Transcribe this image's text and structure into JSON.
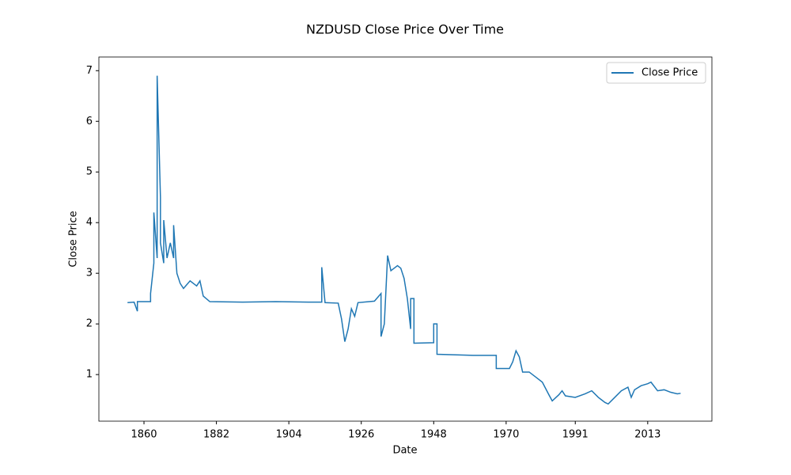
{
  "chart_data": {
    "type": "line",
    "title": "NZDUSD Close Price Over Time",
    "xlabel": "Date",
    "ylabel": "Close Price",
    "x": [
      1855,
      1857,
      1858,
      1858,
      1862,
      1862,
      1863,
      1863,
      1864,
      1864,
      1865,
      1865,
      1866,
      1866,
      1867,
      1868,
      1869,
      1869,
      1870,
      1871,
      1872,
      1874,
      1876,
      1877,
      1878,
      1880,
      1890,
      1900,
      1910,
      1914,
      1914,
      1915,
      1919,
      1920,
      1921,
      1922,
      1923,
      1924,
      1925,
      1930,
      1932,
      1932,
      1933,
      1934,
      1935,
      1937,
      1938,
      1939,
      1940,
      1941,
      1941,
      1942,
      1942,
      1948,
      1948,
      1949,
      1949,
      1960,
      1967,
      1967,
      1971,
      1972,
      1973,
      1974,
      1975,
      1977,
      1979,
      1981,
      1983,
      1984,
      1986,
      1987,
      1988,
      1991,
      1994,
      1996,
      1998,
      2000,
      2001,
      2003,
      2005,
      2007,
      2008,
      2009,
      2011,
      2013,
      2014,
      2016,
      2018,
      2020,
      2022,
      2023
    ],
    "series": [
      {
        "name": "Close Price",
        "color": "#1f77b4",
        "values": [
          2.42,
          2.43,
          2.25,
          2.44,
          2.44,
          2.6,
          3.2,
          4.2,
          3.3,
          6.9,
          4.5,
          3.6,
          3.2,
          4.05,
          3.3,
          3.6,
          3.3,
          3.95,
          3.0,
          2.8,
          2.7,
          2.85,
          2.75,
          2.85,
          2.55,
          2.44,
          2.43,
          2.44,
          2.43,
          2.43,
          3.12,
          2.42,
          2.41,
          2.1,
          1.65,
          1.9,
          2.3,
          2.15,
          2.42,
          2.45,
          2.6,
          1.75,
          2.0,
          3.35,
          3.05,
          3.15,
          3.1,
          2.9,
          2.5,
          1.9,
          2.5,
          2.5,
          1.62,
          1.63,
          2.0,
          2.0,
          1.4,
          1.38,
          1.38,
          1.12,
          1.12,
          1.25,
          1.47,
          1.35,
          1.05,
          1.05,
          0.95,
          0.85,
          0.6,
          0.48,
          0.6,
          0.68,
          0.58,
          0.55,
          0.62,
          0.68,
          0.55,
          0.45,
          0.42,
          0.55,
          0.68,
          0.75,
          0.55,
          0.7,
          0.78,
          0.82,
          0.85,
          0.68,
          0.7,
          0.65,
          0.62,
          0.63
        ]
      }
    ],
    "xlim": [
      1846.3,
      2032.5
    ],
    "xticks": [
      1860,
      1882,
      1904,
      1926,
      1948,
      1970,
      1991,
      2013
    ],
    "ylim": [
      0.08,
      7.27
    ],
    "yticks": [
      1,
      2,
      3,
      4,
      5,
      6,
      7
    ],
    "legend": "upper right"
  }
}
